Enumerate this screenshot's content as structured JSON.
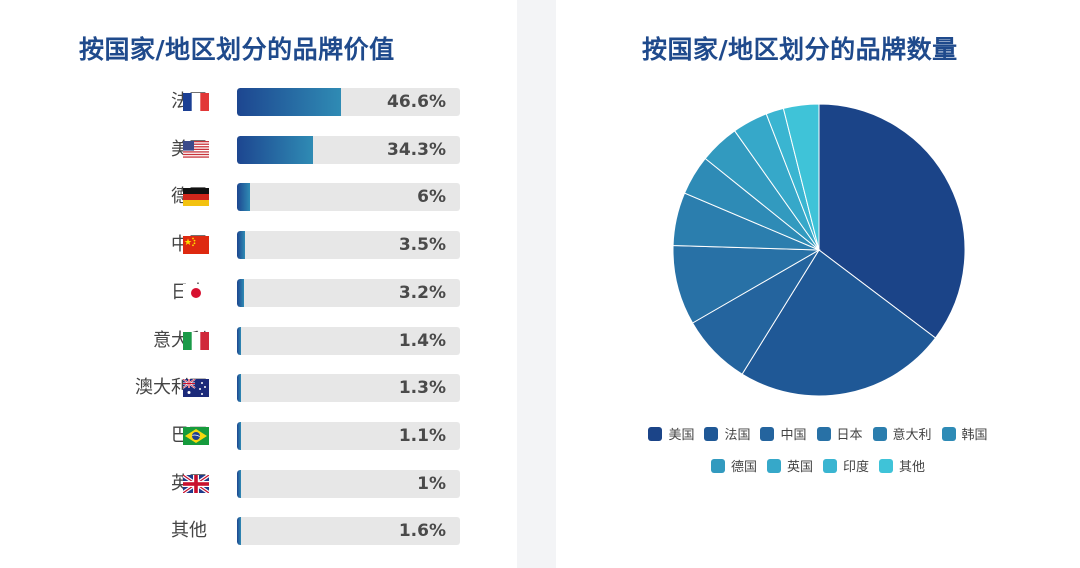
{
  "left": {
    "title": "按国家/地区划分的品牌价值",
    "rows": [
      {
        "label": "法国",
        "percent": "46.6%",
        "value": 46.6,
        "flag": "france-flag-icon"
      },
      {
        "label": "美国",
        "percent": "34.3%",
        "value": 34.3,
        "flag": "usa-flag-icon"
      },
      {
        "label": "德国",
        "percent": "6%",
        "value": 6,
        "flag": "germany-flag-icon"
      },
      {
        "label": "中国",
        "percent": "3.5%",
        "value": 3.5,
        "flag": "china-flag-icon"
      },
      {
        "label": "日本",
        "percent": "3.2%",
        "value": 3.2,
        "flag": "japan-flag-icon"
      },
      {
        "label": "意大利",
        "percent": "1.4%",
        "value": 1.4,
        "flag": "italy-flag-icon"
      },
      {
        "label": "澳大利亚",
        "percent": "1.3%",
        "value": 1.3,
        "flag": "australia-flag-icon"
      },
      {
        "label": "巴西",
        "percent": "1.1%",
        "value": 1.1,
        "flag": "brazil-flag-icon"
      },
      {
        "label": "英国",
        "percent": "1%",
        "value": 1,
        "flag": "uk-flag-icon"
      },
      {
        "label": "其他",
        "percent": "1.6%",
        "value": 1.6,
        "flag": ""
      }
    ]
  },
  "right": {
    "title": "按国家/地区划分的品牌数量"
  },
  "chart_data": [
    {
      "type": "bar",
      "title": "按国家/地区划分的品牌价值",
      "categories": [
        "法国",
        "美国",
        "德国",
        "中国",
        "日本",
        "意大利",
        "澳大利亚",
        "巴西",
        "英国",
        "其他"
      ],
      "values": [
        46.6,
        34.3,
        6,
        3.5,
        3.2,
        1.4,
        1.3,
        1.1,
        1,
        1.6
      ],
      "ylim": [
        0,
        100
      ],
      "orientation": "horizontal"
    },
    {
      "type": "pie",
      "title": "按国家/地区划分的品牌数量",
      "categories": [
        "美国",
        "法国",
        "中国",
        "日本",
        "意大利",
        "韩国",
        "德国",
        "英国",
        "印度",
        "其他"
      ],
      "values": [
        36,
        24,
        8,
        9,
        6,
        4.5,
        4.5,
        4,
        2,
        4
      ],
      "colors": [
        "#1b4488",
        "#1f5896",
        "#24649e",
        "#2871a6",
        "#2b7eae",
        "#2e8bb6",
        "#329abf",
        "#36a8c9",
        "#3ab5d1",
        "#3fc3d8"
      ],
      "legend_position": "bottom"
    }
  ]
}
